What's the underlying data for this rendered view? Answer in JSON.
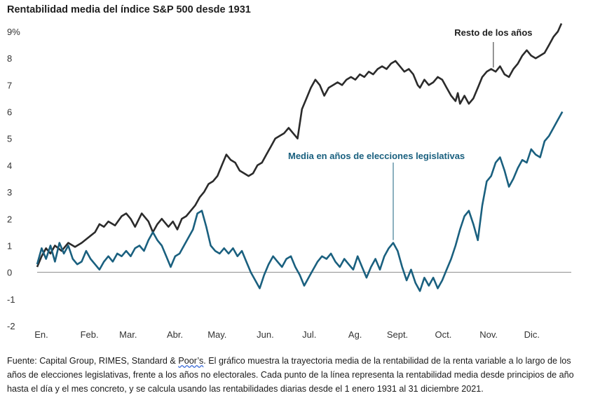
{
  "chart_data": {
    "type": "line",
    "title": "Rentabilidad media del índice S&P 500 desde 1931",
    "xlabel": "",
    "ylabel": "",
    "ylim": [
      -2,
      9
    ],
    "yticks": [
      "9%",
      "8",
      "7",
      "6",
      "5",
      "4",
      "3",
      "2",
      "1",
      "0",
      "-1",
      "-2"
    ],
    "ytick_values": [
      9,
      8,
      7,
      6,
      5,
      4,
      3,
      2,
      1,
      0,
      -1,
      -2
    ],
    "months": [
      "En.",
      "Feb.",
      "Mar.",
      "Abr.",
      "May.",
      "Jun.",
      "Jul.",
      "Ag.",
      "Sept.",
      "Oct.",
      "Nov.",
      "Dic."
    ],
    "xlim": [
      0,
      12
    ],
    "grid": false,
    "zero_line": true,
    "series": [
      {
        "name": "Resto de los años",
        "color": "#2b2b2b",
        "points": [
          [
            0.0,
            0.2
          ],
          [
            0.1,
            0.6
          ],
          [
            0.2,
            0.9
          ],
          [
            0.3,
            0.7
          ],
          [
            0.4,
            1.0
          ],
          [
            0.55,
            0.8
          ],
          [
            0.7,
            1.1
          ],
          [
            0.85,
            0.95
          ],
          [
            1.0,
            1.1
          ],
          [
            1.15,
            1.3
          ],
          [
            1.3,
            1.5
          ],
          [
            1.4,
            1.8
          ],
          [
            1.5,
            1.7
          ],
          [
            1.6,
            1.9
          ],
          [
            1.75,
            1.75
          ],
          [
            1.9,
            2.1
          ],
          [
            2.0,
            2.2
          ],
          [
            2.1,
            2.0
          ],
          [
            2.2,
            1.7
          ],
          [
            2.35,
            2.2
          ],
          [
            2.5,
            1.9
          ],
          [
            2.6,
            1.5
          ],
          [
            2.7,
            1.8
          ],
          [
            2.8,
            2.0
          ],
          [
            2.95,
            1.7
          ],
          [
            3.05,
            1.9
          ],
          [
            3.15,
            1.6
          ],
          [
            3.25,
            2.0
          ],
          [
            3.35,
            2.1
          ],
          [
            3.45,
            2.3
          ],
          [
            3.55,
            2.5
          ],
          [
            3.65,
            2.8
          ],
          [
            3.75,
            3.0
          ],
          [
            3.85,
            3.3
          ],
          [
            3.95,
            3.4
          ],
          [
            4.05,
            3.6
          ],
          [
            4.15,
            4.0
          ],
          [
            4.25,
            4.4
          ],
          [
            4.35,
            4.2
          ],
          [
            4.45,
            4.1
          ],
          [
            4.55,
            3.8
          ],
          [
            4.65,
            3.7
          ],
          [
            4.75,
            3.6
          ],
          [
            4.85,
            3.7
          ],
          [
            4.95,
            4.0
          ],
          [
            5.05,
            4.1
          ],
          [
            5.15,
            4.4
          ],
          [
            5.25,
            4.7
          ],
          [
            5.35,
            5.0
          ],
          [
            5.45,
            5.1
          ],
          [
            5.55,
            5.2
          ],
          [
            5.65,
            5.4
          ],
          [
            5.75,
            5.2
          ],
          [
            5.85,
            5.0
          ],
          [
            5.95,
            6.1
          ],
          [
            6.05,
            6.5
          ],
          [
            6.15,
            6.9
          ],
          [
            6.25,
            7.2
          ],
          [
            6.35,
            7.0
          ],
          [
            6.45,
            6.6
          ],
          [
            6.55,
            6.9
          ],
          [
            6.65,
            7.0
          ],
          [
            6.75,
            7.1
          ],
          [
            6.85,
            7.0
          ],
          [
            6.95,
            7.2
          ],
          [
            7.05,
            7.3
          ],
          [
            7.15,
            7.2
          ],
          [
            7.25,
            7.4
          ],
          [
            7.35,
            7.3
          ],
          [
            7.45,
            7.5
          ],
          [
            7.55,
            7.4
          ],
          [
            7.65,
            7.6
          ],
          [
            7.75,
            7.7
          ],
          [
            7.85,
            7.6
          ],
          [
            7.95,
            7.8
          ],
          [
            8.05,
            7.9
          ],
          [
            8.15,
            7.7
          ],
          [
            8.25,
            7.5
          ],
          [
            8.35,
            7.6
          ],
          [
            8.45,
            7.4
          ],
          [
            8.55,
            7.0
          ],
          [
            8.6,
            6.9
          ],
          [
            8.7,
            7.2
          ],
          [
            8.8,
            7.0
          ],
          [
            8.9,
            7.1
          ],
          [
            9.0,
            7.3
          ],
          [
            9.1,
            7.2
          ],
          [
            9.2,
            6.9
          ],
          [
            9.3,
            6.6
          ],
          [
            9.4,
            6.4
          ],
          [
            9.45,
            6.7
          ],
          [
            9.5,
            6.3
          ],
          [
            9.6,
            6.6
          ],
          [
            9.7,
            6.3
          ],
          [
            9.8,
            6.5
          ],
          [
            9.9,
            6.9
          ],
          [
            10.0,
            7.3
          ],
          [
            10.1,
            7.5
          ],
          [
            10.2,
            7.6
          ],
          [
            10.3,
            7.5
          ],
          [
            10.4,
            7.7
          ],
          [
            10.5,
            7.4
          ],
          [
            10.6,
            7.3
          ],
          [
            10.7,
            7.6
          ],
          [
            10.8,
            7.8
          ],
          [
            10.9,
            8.1
          ],
          [
            11.0,
            8.3
          ],
          [
            11.1,
            8.1
          ],
          [
            11.2,
            8.0
          ],
          [
            11.3,
            8.1
          ],
          [
            11.4,
            8.2
          ],
          [
            11.5,
            8.5
          ],
          [
            11.6,
            8.8
          ],
          [
            11.7,
            9.0
          ],
          [
            11.78,
            9.3
          ]
        ]
      },
      {
        "name": "Media en años de elecciones legislativas",
        "color": "#1a607f",
        "points": [
          [
            0.0,
            0.3
          ],
          [
            0.1,
            0.9
          ],
          [
            0.2,
            0.5
          ],
          [
            0.3,
            1.0
          ],
          [
            0.4,
            0.4
          ],
          [
            0.5,
            1.1
          ],
          [
            0.6,
            0.7
          ],
          [
            0.7,
            1.0
          ],
          [
            0.8,
            0.5
          ],
          [
            0.9,
            0.3
          ],
          [
            1.0,
            0.4
          ],
          [
            1.1,
            0.8
          ],
          [
            1.2,
            0.5
          ],
          [
            1.3,
            0.3
          ],
          [
            1.4,
            0.1
          ],
          [
            1.5,
            0.4
          ],
          [
            1.6,
            0.6
          ],
          [
            1.7,
            0.4
          ],
          [
            1.8,
            0.7
          ],
          [
            1.9,
            0.6
          ],
          [
            2.0,
            0.8
          ],
          [
            2.1,
            0.6
          ],
          [
            2.2,
            0.9
          ],
          [
            2.3,
            1.0
          ],
          [
            2.4,
            0.8
          ],
          [
            2.5,
            1.2
          ],
          [
            2.6,
            1.5
          ],
          [
            2.7,
            1.2
          ],
          [
            2.8,
            1.0
          ],
          [
            2.9,
            0.6
          ],
          [
            3.0,
            0.2
          ],
          [
            3.1,
            0.6
          ],
          [
            3.2,
            0.7
          ],
          [
            3.3,
            1.0
          ],
          [
            3.4,
            1.3
          ],
          [
            3.5,
            1.6
          ],
          [
            3.6,
            2.2
          ],
          [
            3.7,
            2.3
          ],
          [
            3.8,
            1.7
          ],
          [
            3.9,
            1.0
          ],
          [
            4.0,
            0.8
          ],
          [
            4.1,
            0.7
          ],
          [
            4.2,
            0.9
          ],
          [
            4.3,
            0.7
          ],
          [
            4.4,
            0.9
          ],
          [
            4.5,
            0.6
          ],
          [
            4.6,
            0.8
          ],
          [
            4.7,
            0.4
          ],
          [
            4.8,
            0.0
          ],
          [
            4.9,
            -0.3
          ],
          [
            5.0,
            -0.6
          ],
          [
            5.1,
            -0.1
          ],
          [
            5.2,
            0.3
          ],
          [
            5.3,
            0.6
          ],
          [
            5.4,
            0.4
          ],
          [
            5.5,
            0.2
          ],
          [
            5.6,
            0.5
          ],
          [
            5.7,
            0.6
          ],
          [
            5.8,
            0.2
          ],
          [
            5.9,
            -0.1
          ],
          [
            6.0,
            -0.5
          ],
          [
            6.1,
            -0.2
          ],
          [
            6.2,
            0.1
          ],
          [
            6.3,
            0.4
          ],
          [
            6.4,
            0.6
          ],
          [
            6.5,
            0.5
          ],
          [
            6.6,
            0.7
          ],
          [
            6.7,
            0.4
          ],
          [
            6.8,
            0.2
          ],
          [
            6.9,
            0.5
          ],
          [
            7.0,
            0.3
          ],
          [
            7.1,
            0.1
          ],
          [
            7.2,
            0.6
          ],
          [
            7.3,
            0.2
          ],
          [
            7.4,
            -0.2
          ],
          [
            7.5,
            0.2
          ],
          [
            7.6,
            0.5
          ],
          [
            7.7,
            0.1
          ],
          [
            7.8,
            0.6
          ],
          [
            7.9,
            0.9
          ],
          [
            8.0,
            1.1
          ],
          [
            8.1,
            0.8
          ],
          [
            8.2,
            0.2
          ],
          [
            8.3,
            -0.3
          ],
          [
            8.4,
            0.1
          ],
          [
            8.5,
            -0.4
          ],
          [
            8.6,
            -0.7
          ],
          [
            8.7,
            -0.2
          ],
          [
            8.8,
            -0.5
          ],
          [
            8.9,
            -0.2
          ],
          [
            9.0,
            -0.6
          ],
          [
            9.1,
            -0.3
          ],
          [
            9.2,
            0.1
          ],
          [
            9.3,
            0.5
          ],
          [
            9.4,
            1.0
          ],
          [
            9.5,
            1.6
          ],
          [
            9.6,
            2.1
          ],
          [
            9.7,
            2.3
          ],
          [
            9.8,
            1.8
          ],
          [
            9.9,
            1.2
          ],
          [
            10.0,
            2.5
          ],
          [
            10.1,
            3.4
          ],
          [
            10.2,
            3.6
          ],
          [
            10.3,
            4.1
          ],
          [
            10.4,
            4.3
          ],
          [
            10.5,
            3.8
          ],
          [
            10.6,
            3.2
          ],
          [
            10.7,
            3.5
          ],
          [
            10.8,
            3.9
          ],
          [
            10.9,
            4.2
          ],
          [
            11.0,
            4.1
          ],
          [
            11.1,
            4.6
          ],
          [
            11.2,
            4.4
          ],
          [
            11.3,
            4.3
          ],
          [
            11.4,
            4.9
          ],
          [
            11.5,
            5.1
          ],
          [
            11.6,
            5.4
          ],
          [
            11.7,
            5.7
          ],
          [
            11.8,
            6.0
          ]
        ]
      }
    ],
    "annotations": [
      {
        "text": "Resto de los años",
        "series": 0,
        "x": 10.25,
        "y": 7.55
      },
      {
        "text": "Media en años de elecciones legislativas",
        "series": 1,
        "x": 8.0,
        "y": 1.1
      }
    ]
  },
  "source_note": {
    "before": "Fuente: Capital Group, RIMES, Standard & ",
    "underlined": "Poor’s",
    "after": ". El gráfico muestra la trayectoria media de la rentabilidad de la renta variable a lo largo de los años de elecciones legislativas, frente a los años no electorales. Cada punto de la línea representa la rentabilidad media desde principios de año hasta el día y el mes concreto, y se calcula usando las rentabilidades diarias desde el 1 enero 1931 al 31 diciembre 2021."
  }
}
